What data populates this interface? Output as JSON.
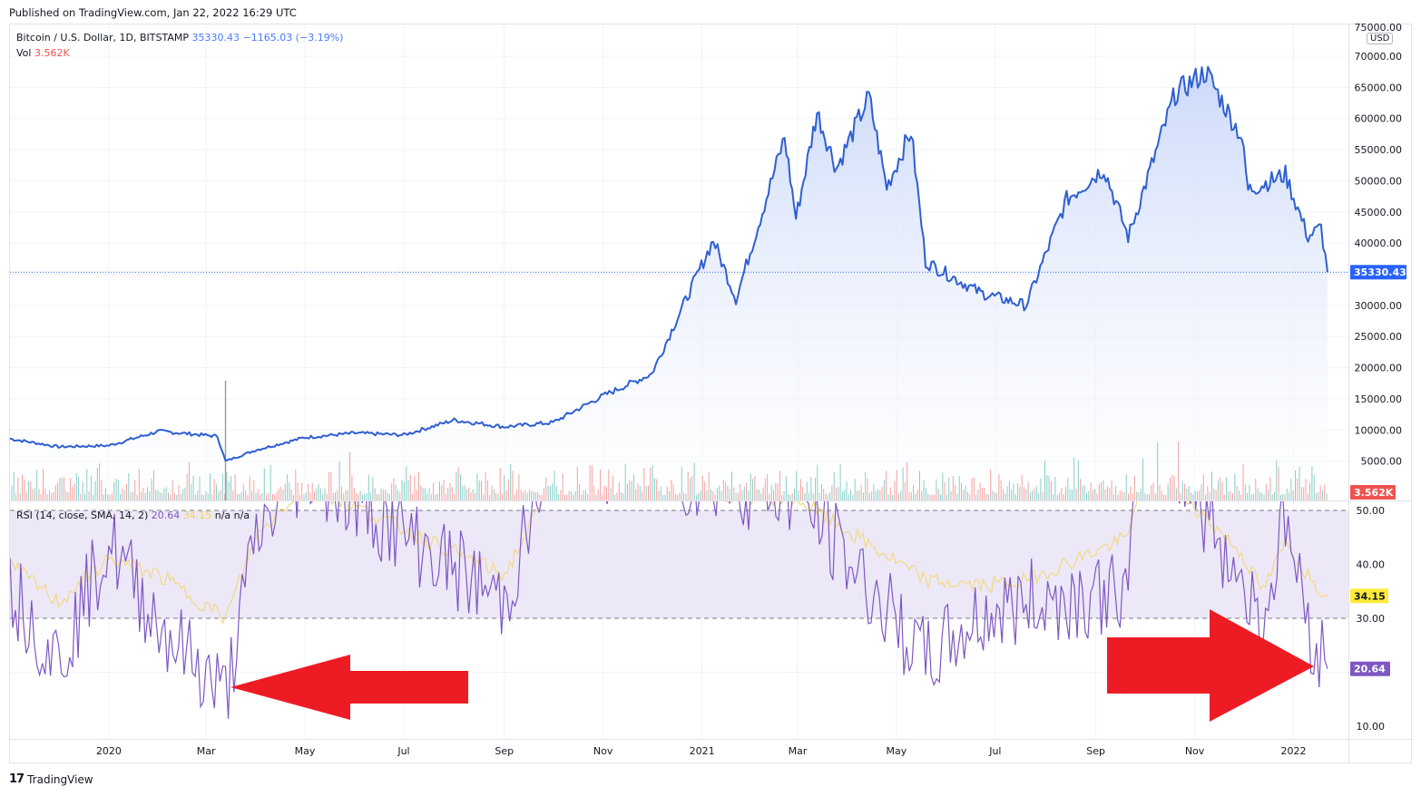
{
  "header": {
    "published": "Published on TradingView.com, Jan 22, 2022 16:29 UTC"
  },
  "legend": {
    "symbol": "Bitcoin / U.S. Dollar, 1D, BITSTAMP",
    "price": "35330.43",
    "change": "−1165.03 (−3.19%)",
    "vol_label": "Vol",
    "vol_value": "3.562K",
    "rsi_label": "RSI (14, close, SMA, 14, 2)",
    "rsi_value": "20.64",
    "rsi_sma_value": "34.15",
    "rsi_na1": "n/a",
    "rsi_na2": "n/a"
  },
  "price_axis": {
    "currency": "USD",
    "top_partial": "75000.00",
    "ticks": [
      "70000.00",
      "65000.00",
      "60000.00",
      "55000.00",
      "50000.00",
      "45000.00",
      "40000.00",
      "30000.00",
      "25000.00",
      "20000.00",
      "15000.00",
      "10000.00",
      "5000.00"
    ],
    "last_price_badge": "35330.43",
    "volume_badge": "3.562K"
  },
  "rsi_axis": {
    "ticks": [
      "50.00",
      "40.00",
      "30.00",
      "10.00"
    ],
    "sma_badge": "34.15",
    "rsi_badge": "20.64"
  },
  "time_axis": {
    "labels": [
      "2020",
      "Mar",
      "May",
      "Jul",
      "Sep",
      "Nov",
      "2021",
      "Mar",
      "May",
      "Jul",
      "Sep",
      "Nov",
      "2022"
    ]
  },
  "footer": {
    "logo": "17",
    "brand": "TradingView"
  },
  "colors": {
    "price_line": "#2f5fd0",
    "price_fill_top": "#c9d7f8",
    "last_price_badge": "#2962ff",
    "volume_badge": "#ef5350",
    "rsi_line": "#7e57c2",
    "rsi_sma": "#f2d98a",
    "rsi_band": "#ede8f8",
    "arrows": "#ed1c24",
    "vol_up": "#26a69a",
    "vol_down": "#ef5350"
  },
  "chart_data": [
    {
      "type": "area",
      "title": "Bitcoin / U.S. Dollar, 1D, BITSTAMP",
      "xlabel": "",
      "ylabel": "USD",
      "ylim": [
        0,
        75000
      ],
      "x": [
        "2019-11",
        "2019-12",
        "2020-01",
        "2020-02",
        "2020-03-08",
        "2020-03-13",
        "2020-04",
        "2020-05",
        "2020-06",
        "2020-07",
        "2020-08",
        "2020-09",
        "2020-10",
        "2020-11",
        "2020-12",
        "2021-01-08",
        "2021-01-22",
        "2021-02-21",
        "2021-02-28",
        "2021-03-13",
        "2021-03-25",
        "2021-04-14",
        "2021-04-25",
        "2021-05-10",
        "2021-05-19",
        "2021-06-22",
        "2021-07-20",
        "2021-08-14",
        "2021-09-06",
        "2021-09-21",
        "2021-10-20",
        "2021-11-08",
        "2021-11-30",
        "2021-12-04",
        "2021-12-27",
        "2022-01-10",
        "2022-01-18",
        "2022-01-22"
      ],
      "series": [
        {
          "name": "Close",
          "values": [
            8600,
            7300,
            7500,
            9800,
            9000,
            5000,
            6800,
            8800,
            9500,
            9200,
            11600,
            10500,
            11200,
            15500,
            19000,
            40500,
            31000,
            57000,
            44000,
            61000,
            52000,
            63500,
            49000,
            58000,
            37000,
            32000,
            30000,
            47000,
            52000,
            41000,
            64000,
            67500,
            57000,
            48500,
            51000,
            41000,
            42500,
            35330
          ]
        }
      ],
      "last_price": 35330.43,
      "change": -1165.03,
      "change_pct": -3.19
    },
    {
      "type": "bar",
      "title": "Vol",
      "last_value": "3.562K",
      "notes": "daily volume histogram along bottom of price pane, spike mid-March 2020"
    },
    {
      "type": "line",
      "title": "RSI (14, close, SMA, 14, 2)",
      "ylim": [
        7,
        52
      ],
      "bands": {
        "upper": 50,
        "lower": 30
      },
      "x": [
        "2019-11",
        "2019-12",
        "2020-01",
        "2020-02",
        "2020-03-13",
        "2020-04",
        "2020-05",
        "2020-09",
        "2020-10",
        "2021-03",
        "2021-05-19",
        "2021-06-22",
        "2021-07-20",
        "2021-09-21",
        "2021-10",
        "2021-11-30",
        "2021-12-13",
        "2021-12-27",
        "2022-01-10",
        "2022-01-22"
      ],
      "series": [
        {
          "name": "RSI",
          "values": [
            36,
            22,
            44,
            29,
            15.5,
            45,
            58,
            33,
            60,
            53,
            22,
            30,
            33,
            35,
            70,
            37,
            29,
            49,
            29,
            20.64
          ]
        },
        {
          "name": "RSI SMA",
          "values": [
            40,
            33,
            41,
            38,
            30,
            45,
            55,
            38,
            55,
            52,
            37,
            36,
            37,
            45,
            60,
            42,
            35,
            44,
            38,
            34.15
          ]
        }
      ],
      "last_values": {
        "rsi": 20.64,
        "sma": 34.15
      }
    }
  ],
  "annotations": [
    {
      "type": "arrow",
      "direction": "left",
      "color": "#ed1c24",
      "points_to": "RSI low March 2020"
    },
    {
      "type": "arrow",
      "direction": "right",
      "color": "#ed1c24",
      "points_to": "RSI current 20.64"
    }
  ]
}
